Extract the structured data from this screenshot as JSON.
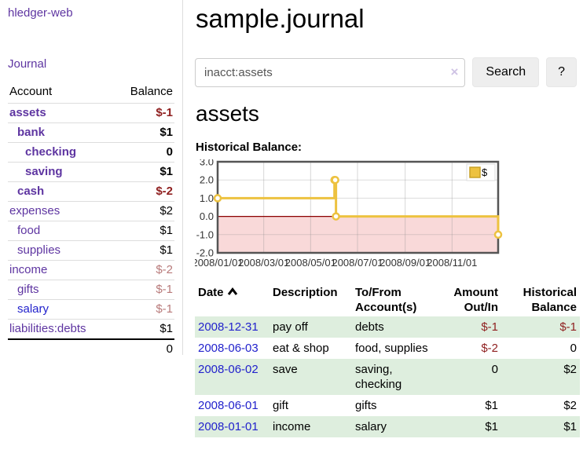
{
  "app": {
    "brand": "hledger-web",
    "nav_journal_label": "Journal"
  },
  "sidebar": {
    "accounts_table": {
      "headers": {
        "account": "Account",
        "balance": "Balance"
      },
      "rows": [
        {
          "account": "assets",
          "balance": "$-1",
          "indent": 1,
          "bold": true,
          "neg": "strong",
          "link_color": "purple"
        },
        {
          "account": "bank",
          "balance": "$1",
          "indent": 2,
          "bold": true,
          "neg": null,
          "link_color": "purple"
        },
        {
          "account": "checking",
          "balance": "0",
          "indent": 3,
          "bold": true,
          "neg": null,
          "link_color": "purple"
        },
        {
          "account": "saving",
          "balance": "$1",
          "indent": 3,
          "bold": true,
          "neg": null,
          "link_color": "purple"
        },
        {
          "account": "cash",
          "balance": "$-2",
          "indent": 2,
          "bold": true,
          "neg": "strong",
          "link_color": "purple"
        },
        {
          "account": "expenses",
          "balance": "$2",
          "indent": 1,
          "bold": false,
          "neg": null,
          "link_color": "purple"
        },
        {
          "account": "food",
          "balance": "$1",
          "indent": 2,
          "bold": false,
          "neg": null,
          "link_color": "purple"
        },
        {
          "account": "supplies",
          "balance": "$1",
          "indent": 2,
          "bold": false,
          "neg": null,
          "link_color": "purple"
        },
        {
          "account": "income",
          "balance": "$-2",
          "indent": 1,
          "bold": false,
          "neg": "soft",
          "link_color": "purple"
        },
        {
          "account": "gifts",
          "balance": "$-1",
          "indent": 2,
          "bold": false,
          "neg": "soft",
          "link_color": "purple"
        },
        {
          "account": "salary",
          "balance": "$-1",
          "indent": 2,
          "bold": false,
          "neg": "soft",
          "link_color": "blue"
        },
        {
          "account": "liabilities:debts",
          "balance": "$1",
          "indent": 1,
          "bold": false,
          "neg": null,
          "link_color": "purple"
        }
      ],
      "total": "0"
    }
  },
  "main": {
    "title": "sample.journal",
    "search": {
      "value": "inacct:assets",
      "clear_icon": "×",
      "search_button_label": "Search",
      "help_button_label": "?"
    },
    "account_heading": "assets",
    "chart_heading": "Historical Balance:",
    "register_table": {
      "headers": [
        "Date",
        "Description",
        "To/From Account(s)",
        "Amount Out/In",
        "Historical Balance"
      ],
      "rows": [
        {
          "date": "2008-12-31",
          "description": "pay off",
          "accounts": "debts",
          "amount": "$-1",
          "balance": "$-1"
        },
        {
          "date": "2008-06-03",
          "description": "eat & shop",
          "accounts": "food, supplies",
          "amount": "$-2",
          "balance": "0"
        },
        {
          "date": "2008-06-02",
          "description": "save",
          "accounts": "saving, checking",
          "amount": "0",
          "balance": "$2"
        },
        {
          "date": "2008-06-01",
          "description": "gift",
          "accounts": "gifts",
          "amount": "$1",
          "balance": "$2"
        },
        {
          "date": "2008-01-01",
          "description": "income",
          "accounts": "salary",
          "amount": "$1",
          "balance": "$1"
        }
      ]
    }
  },
  "chart_data": {
    "type": "line",
    "title": "Historical Balance:",
    "step": true,
    "series": [
      {
        "name": "$",
        "color": "#edc240",
        "points": [
          [
            "2008-01-01",
            1
          ],
          [
            "2008-06-01",
            2
          ],
          [
            "2008-06-02",
            2
          ],
          [
            "2008-06-03",
            0
          ],
          [
            "2008-12-31",
            -1
          ]
        ]
      }
    ],
    "xlim": [
      "2008-01-01",
      "2008-12-31"
    ],
    "ylim": [
      -2,
      3
    ],
    "x_ticks": [
      "2008/01/01",
      "2008/03/01",
      "2008/05/01",
      "2008/07/01",
      "2008/09/01",
      "2008/11/01"
    ],
    "y_ticks": [
      3.0,
      2.0,
      1.0,
      0.0,
      -1.0,
      -2.0
    ],
    "legend": {
      "label": "$",
      "position": "top-right"
    },
    "grid": true,
    "negative_region_fill": "#f9d9d9",
    "zero_line_color": "#8b0000"
  },
  "colors": {
    "link_purple": "#5e35a1",
    "link_blue": "#2222cc",
    "negative_strong": "#8f1f1f",
    "negative_soft": "#b87a7a",
    "row_stripe_green": "#deeede",
    "chart_line_yellow": "#edc240",
    "chart_negative_fill": "#f9d9d9",
    "chart_zero_line": "#8b0000"
  }
}
